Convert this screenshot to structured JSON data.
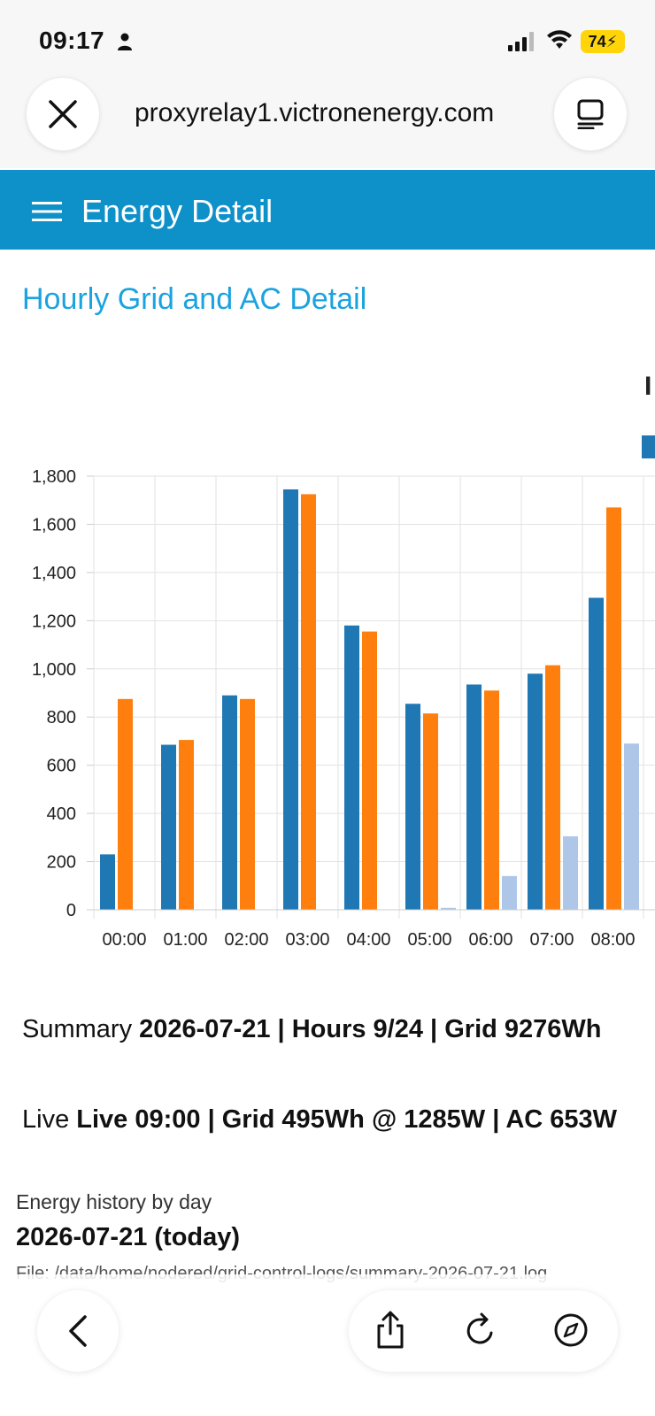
{
  "status_bar": {
    "time": "09:17",
    "battery": "74"
  },
  "browser": {
    "url": "proxyrelay1.victronenergy.com",
    "icons": [
      "close-icon",
      "reader-icon",
      "back-icon",
      "share-icon",
      "reload-icon",
      "compass-icon"
    ]
  },
  "app": {
    "title": "Energy Detail",
    "header_color": "#0e90c8"
  },
  "section": {
    "title": "Hourly Grid and AC Detail"
  },
  "chart_data": {
    "type": "bar",
    "title_fragment": "I",
    "categories": [
      "00:00",
      "01:00",
      "02:00",
      "03:00",
      "04:00",
      "05:00",
      "06:00",
      "07:00",
      "08:00"
    ],
    "series": [
      {
        "values": [
          230,
          685,
          890,
          1745,
          1180,
          855,
          935,
          980,
          1295
        ],
        "color": "#1f77b4"
      },
      {
        "values": [
          875,
          705,
          875,
          1725,
          1155,
          815,
          910,
          1015,
          1670
        ],
        "color": "#ff7f0e"
      },
      {
        "values": [
          0,
          0,
          0,
          0,
          0,
          8,
          140,
          305,
          690
        ],
        "color": "#aec7e8"
      }
    ],
    "ylim": [
      0,
      1800
    ],
    "y_ticks": [
      "0",
      "200",
      "400",
      "600",
      "800",
      "1,000",
      "1,200",
      "1,400",
      "1,600",
      "1,800"
    ],
    "grid": true,
    "legend": "top-right"
  },
  "summary": {
    "label": "Summary",
    "value": "2026-07-21 | Hours 9/24 | Grid 9276Wh"
  },
  "live": {
    "label": "Live",
    "value": "Live 09:00 | Grid 495Wh @ 1285W | AC 653W"
  },
  "history": {
    "label": "Energy history by day",
    "date": "2026-07-21 (today)",
    "file": "File: /data/home/nodered/grid-control-logs/summary-2026-07-21.log"
  }
}
